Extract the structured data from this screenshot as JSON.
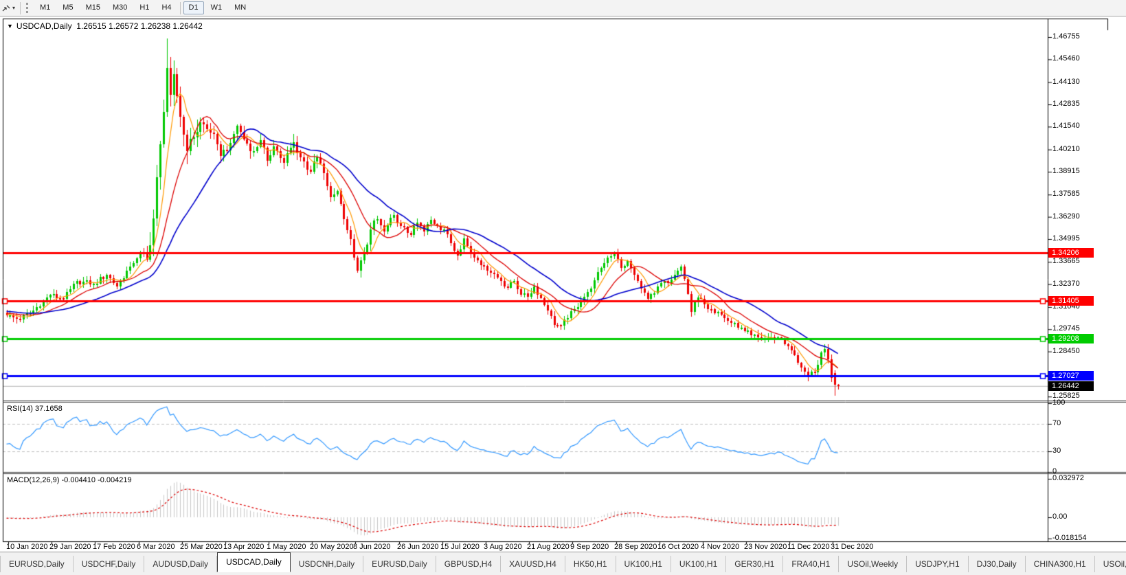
{
  "toolbar": {
    "caret": "▾",
    "timeframes": [
      "M1",
      "M5",
      "M15",
      "M30",
      "H1",
      "H4",
      "D1",
      "W1",
      "MN"
    ],
    "active_timeframe": "D1"
  },
  "chart": {
    "collapse_icon": "▼",
    "title_symbol": "USDCAD,Daily",
    "title_ohlc": "1.26515 1.26572 1.26238 1.26442"
  },
  "panes": {
    "rsi": {
      "label": "RSI(14)",
      "value": "37.1658",
      "axis_labels": [
        "100",
        "70",
        "30",
        "0"
      ]
    },
    "macd": {
      "label": "MACD(12,26,9)",
      "values": "-0.004410 -0.004219",
      "axis_labels": [
        "0.032972",
        "0.00",
        "-0.018154"
      ]
    }
  },
  "price_axis": {
    "labels": [
      "1.46755",
      "1.45460",
      "1.44130",
      "1.42835",
      "1.41540",
      "1.40210",
      "1.38915",
      "1.37585",
      "1.36290",
      "1.34995",
      "1.33665",
      "1.32370",
      "1.31040",
      "1.29745",
      "1.28450",
      "1.25825"
    ]
  },
  "price_tags": [
    {
      "text": "1.34206",
      "price": 1.34206,
      "color": "#ff0000"
    },
    {
      "text": "1.31405",
      "price": 1.31405,
      "color": "#ff0000"
    },
    {
      "text": "1.29208",
      "price": 1.29208,
      "color": "#00cc00"
    },
    {
      "text": "1.27027",
      "price": 1.27027,
      "color": "#0000ff"
    },
    {
      "text": "1.26442",
      "price": 1.26442,
      "color": "#000000"
    }
  ],
  "time_axis": {
    "labels": [
      "10 Jan 2020",
      "29 Jan 2020",
      "17 Feb 2020",
      "6 Mar 2020",
      "25 Mar 2020",
      "13 Apr 2020",
      "1 May 2020",
      "20 May 2020",
      "8 Jun 2020",
      "26 Jun 2020",
      "15 Jul 2020",
      "3 Aug 2020",
      "21 Aug 2020",
      "9 Sep 2020",
      "28 Sep 2020",
      "16 Oct 2020",
      "4 Nov 2020",
      "23 Nov 2020",
      "11 Dec 2020",
      "31 Dec 2020"
    ]
  },
  "tabs": {
    "items": [
      "EURUSD,Daily",
      "USDCHF,Daily",
      "AUDUSD,Daily",
      "USDCAD,Daily",
      "USDCNH,Daily",
      "EURUSD,Daily",
      "GBPUSD,H4",
      "XAUUSD,H4",
      "HK50,H1",
      "UK100,H1",
      "UK100,H1",
      "GER30,H1",
      "FRA40,H1",
      "USOil,Weekly",
      "USDJPY,H1",
      "DJ30,Daily",
      "CHINA300,H1",
      "USOil,"
    ],
    "active_index": 3,
    "scroll_left": "◂",
    "scroll_right": "▸"
  },
  "chart_data": {
    "type": "candlestick",
    "title": "USDCAD,Daily",
    "symbol": "USDCAD",
    "timeframe": "Daily",
    "grid": "off",
    "legend_position": "none",
    "bars": 250,
    "bars_per_tick": 13,
    "ylim": [
      1.257,
      1.47
    ],
    "visible_high": 1.4668,
    "visible_low": 1.2585,
    "current_bar_ohlc": {
      "open": 1.26515,
      "high": 1.26572,
      "low": 1.26238,
      "close": 1.26442
    },
    "close_path_anchors": [
      [
        0,
        1.3055
      ],
      [
        4,
        1.303
      ],
      [
        8,
        1.3085
      ],
      [
        13,
        1.3175
      ],
      [
        17,
        1.315
      ],
      [
        21,
        1.3255
      ],
      [
        26,
        1.324
      ],
      [
        30,
        1.329
      ],
      [
        33,
        1.3225
      ],
      [
        37,
        1.334
      ],
      [
        40,
        1.342
      ],
      [
        42,
        1.338
      ],
      [
        44,
        1.362
      ],
      [
        46,
        1.405
      ],
      [
        48,
        1.4496
      ],
      [
        49,
        1.434
      ],
      [
        50,
        1.446
      ],
      [
        52,
        1.421
      ],
      [
        54,
        1.401
      ],
      [
        56,
        1.409
      ],
      [
        58,
        1.418
      ],
      [
        61,
        1.412
      ],
      [
        64,
        1.3985
      ],
      [
        67,
        1.406
      ],
      [
        69,
        1.416
      ],
      [
        71,
        1.408
      ],
      [
        74,
        1.401
      ],
      [
        76,
        1.4075
      ],
      [
        78,
        1.3955
      ],
      [
        80,
        1.404
      ],
      [
        83,
        1.3945
      ],
      [
        86,
        1.4065
      ],
      [
        88,
        1.3975
      ],
      [
        91,
        1.389
      ],
      [
        93,
        1.3975
      ],
      [
        95,
        1.3885
      ],
      [
        97,
        1.3745
      ],
      [
        99,
        1.378
      ],
      [
        101,
        1.3615
      ],
      [
        103,
        1.35
      ],
      [
        105,
        1.3315
      ],
      [
        107,
        1.342
      ],
      [
        109,
        1.3555
      ],
      [
        111,
        1.3615
      ],
      [
        113,
        1.3545
      ],
      [
        116,
        1.364
      ],
      [
        118,
        1.3575
      ],
      [
        121,
        1.3525
      ],
      [
        123,
        1.3595
      ],
      [
        125,
        1.3545
      ],
      [
        127,
        1.361
      ],
      [
        129,
        1.3575
      ],
      [
        131,
        1.3555
      ],
      [
        133,
        1.3475
      ],
      [
        135,
        1.3405
      ],
      [
        137,
        1.3505
      ],
      [
        139,
        1.3415
      ],
      [
        141,
        1.3375
      ],
      [
        143,
        1.3345
      ],
      [
        146,
        1.3295
      ],
      [
        148,
        1.3255
      ],
      [
        150,
        1.3215
      ],
      [
        152,
        1.3255
      ],
      [
        154,
        1.3175
      ],
      [
        156,
        1.3165
      ],
      [
        158,
        1.3225
      ],
      [
        160,
        1.3155
      ],
      [
        162,
        1.3085
      ],
      [
        164,
        1.3
      ],
      [
        166,
        1.2995
      ],
      [
        168,
        1.304
      ],
      [
        170,
        1.309
      ],
      [
        172,
        1.314
      ],
      [
        174,
        1.319
      ],
      [
        176,
        1.326
      ],
      [
        178,
        1.333
      ],
      [
        180,
        1.339
      ],
      [
        182,
        1.342
      ],
      [
        184,
        1.333
      ],
      [
        186,
        1.337
      ],
      [
        188,
        1.329
      ],
      [
        190,
        1.321
      ],
      [
        192,
        1.315
      ],
      [
        194,
        1.3185
      ],
      [
        196,
        1.3245
      ],
      [
        198,
        1.3245
      ],
      [
        200,
        1.329
      ],
      [
        202,
        1.334
      ],
      [
        204,
        1.318
      ],
      [
        205,
        1.3075
      ],
      [
        207,
        1.316
      ],
      [
        209,
        1.312
      ],
      [
        211,
        1.309
      ],
      [
        213,
        1.3075
      ],
      [
        215,
        1.304
      ],
      [
        217,
        1.301
      ],
      [
        219,
        1.2985
      ],
      [
        221,
        1.2965
      ],
      [
        223,
        1.294
      ],
      [
        226,
        1.2915
      ],
      [
        229,
        1.2928
      ],
      [
        232,
        1.292
      ],
      [
        234,
        1.2875
      ],
      [
        236,
        1.2825
      ],
      [
        238,
        1.275
      ],
      [
        240,
        1.27
      ],
      [
        242,
        1.2725
      ],
      [
        244,
        1.284
      ],
      [
        245,
        1.286
      ],
      [
        246,
        1.28
      ],
      [
        247,
        1.269
      ],
      [
        248,
        1.265
      ],
      [
        249,
        1.26442
      ]
    ],
    "forced_bars": {
      "spike_high": {
        "index": 48,
        "high": 1.4668
      },
      "prev_bar": {
        "o": 1.2718,
        "h": 1.2734,
        "l": 1.2588,
        "c": 1.265
      },
      "last_bar": {
        "o": 1.26515,
        "h": 1.26572,
        "l": 1.26238,
        "c": 1.26442
      }
    },
    "candle_colors": {
      "up": "#00c800",
      "down": "#ee0000"
    },
    "moving_averages": [
      {
        "name": "ma-fast",
        "period": 6,
        "color": "#ff9900",
        "width": 1.2
      },
      {
        "name": "ma-medium",
        "period": 14,
        "color": "#dd0000",
        "width": 1.3
      },
      {
        "name": "ma-slow",
        "period": 28,
        "color": "#0000cd",
        "width": 1.6
      }
    ],
    "horizontal_lines": [
      {
        "price": 1.34206,
        "color": "#ff0000",
        "selected": false
      },
      {
        "price": 1.31405,
        "color": "#ff0000",
        "selected": true
      },
      {
        "price": 1.29208,
        "color": "#00cc00",
        "selected": true
      },
      {
        "price": 1.27027,
        "color": "#0000ff",
        "selected": true
      }
    ],
    "bid_line": {
      "price": 1.26442,
      "color": "#b4b4b4"
    },
    "indicators": [
      {
        "name": "RSI",
        "params": [
          14
        ],
        "current_value": 37.1658,
        "range": [
          0,
          100
        ],
        "dashed_levels": [
          70,
          30
        ],
        "line_color": "#3399ff",
        "level_color": "#bfbfbf"
      },
      {
        "name": "MACD",
        "params": [
          12,
          26,
          9
        ],
        "current_values": [
          -0.00441,
          -0.004219
        ],
        "axis_values": [
          0.032972,
          0.0,
          -0.018154
        ],
        "histogram_color": "#c8c8c8",
        "signal_color": "#dd0000"
      }
    ],
    "x_tick_labels": [
      "10 Jan 2020",
      "29 Jan 2020",
      "17 Feb 2020",
      "6 Mar 2020",
      "25 Mar 2020",
      "13 Apr 2020",
      "1 May 2020",
      "20 May 2020",
      "8 Jun 2020",
      "26 Jun 2020",
      "15 Jul 2020",
      "3 Aug 2020",
      "21 Aug 2020",
      "9 Sep 2020",
      "28 Sep 2020",
      "16 Oct 2020",
      "4 Nov 2020",
      "23 Nov 2020",
      "11 Dec 2020",
      "31 Dec 2020"
    ],
    "price_tick_labels": [
      1.46755,
      1.4546,
      1.4413,
      1.42835,
      1.4154,
      1.4021,
      1.38915,
      1.37585,
      1.3629,
      1.34995,
      1.33665,
      1.3237,
      1.3104,
      1.29745,
      1.2845,
      1.25825
    ]
  }
}
